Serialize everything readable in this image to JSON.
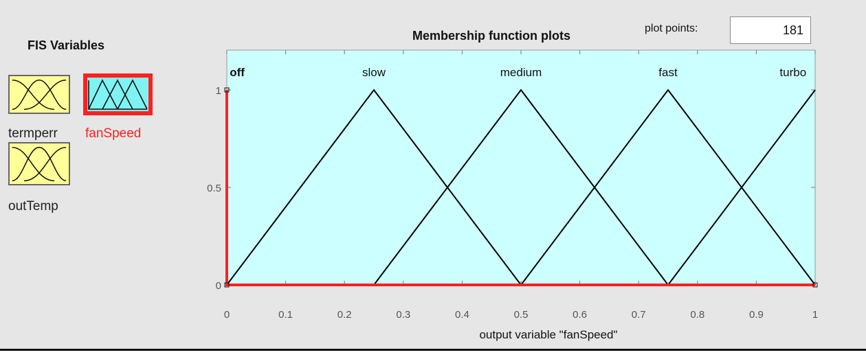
{
  "fis_panel": {
    "title": "FIS Variables",
    "variables": [
      {
        "name": "termperr",
        "kind": "input",
        "selected": false,
        "icon": "input-mf-icon"
      },
      {
        "name": "fanSpeed",
        "kind": "output",
        "selected": true,
        "icon": "output-mf-icon"
      },
      {
        "name": "outTemp",
        "kind": "input",
        "selected": false,
        "icon": "input-mf-icon"
      }
    ]
  },
  "plot": {
    "title": "Membership function plots",
    "plot_points_label": "plot points:",
    "plot_points_value": "181"
  },
  "chart_data": {
    "type": "line",
    "xlabel": "output variable \"fanSpeed\"",
    "xlim": [
      0,
      1
    ],
    "ylim": [
      0,
      1
    ],
    "x_ticks": [
      "0",
      "0.1",
      "0.2",
      "0.3",
      "0.4",
      "0.5",
      "0.6",
      "0.7",
      "0.8",
      "0.9",
      "1"
    ],
    "y_ticks": [
      "0",
      "0.5",
      "1"
    ],
    "background_color": "#ccffff",
    "series": [
      {
        "name": "off",
        "color": "#ff2020",
        "selected": true,
        "x": [
          0,
          0,
          1
        ],
        "y": [
          1,
          0,
          0
        ]
      },
      {
        "name": "slow",
        "color": "#000000",
        "selected": false,
        "x": [
          0,
          0.25,
          0.5
        ],
        "y": [
          0,
          1,
          0
        ]
      },
      {
        "name": "medium",
        "color": "#000000",
        "selected": false,
        "x": [
          0.25,
          0.5,
          0.75
        ],
        "y": [
          0,
          1,
          0
        ]
      },
      {
        "name": "fast",
        "color": "#000000",
        "selected": false,
        "x": [
          0.5,
          0.75,
          1
        ],
        "y": [
          0,
          1,
          0
        ]
      },
      {
        "name": "turbo",
        "color": "#000000",
        "selected": false,
        "x": [
          0.75,
          1
        ],
        "y": [
          0,
          1
        ]
      }
    ],
    "label_x": [
      0.005,
      0.25,
      0.5,
      0.75,
      0.985
    ]
  }
}
